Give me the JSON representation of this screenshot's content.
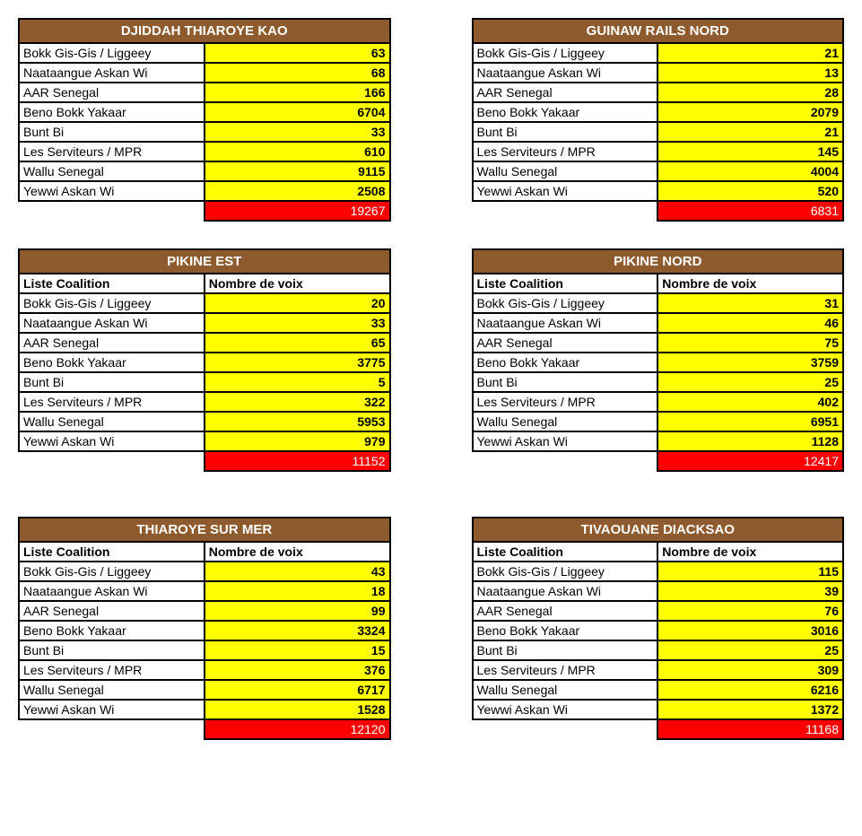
{
  "colors": {
    "header_bg": "#8e5b2e",
    "header_text": "#ffffff",
    "cell_highlight": "#ffff00",
    "total_bg": "#ff0000",
    "total_text": "#ffffff",
    "border": "#000000",
    "page_bg": "#ffffff"
  },
  "subheaders": {
    "coalition": "Liste Coalition",
    "votes": "Nombre de voix"
  },
  "tables": [
    {
      "title": "DJIDDAH THIAROYE KAO",
      "show_subheader": false,
      "rows": [
        {
          "name": "Bokk Gis-Gis / Liggeey",
          "value": "63"
        },
        {
          "name": "Naataangue Askan Wi",
          "value": "68"
        },
        {
          "name": "AAR Senegal",
          "value": "166"
        },
        {
          "name": "Beno Bokk Yakaar",
          "value": "6704"
        },
        {
          "name": "Bunt Bi",
          "value": "33"
        },
        {
          "name": "Les Serviteurs / MPR",
          "value": "610"
        },
        {
          "name": "Wallu Senegal",
          "value": "9115"
        },
        {
          "name": "Yewwi Askan Wi",
          "value": "2508"
        }
      ],
      "total": "19267"
    },
    {
      "title": "GUINAW RAILS NORD",
      "show_subheader": false,
      "rows": [
        {
          "name": "Bokk Gis-Gis / Liggeey",
          "value": "21"
        },
        {
          "name": "Naataangue Askan Wi",
          "value": "13"
        },
        {
          "name": "AAR Senegal",
          "value": "28"
        },
        {
          "name": "Beno Bokk Yakaar",
          "value": "2079"
        },
        {
          "name": "Bunt Bi",
          "value": "21"
        },
        {
          "name": "Les Serviteurs / MPR",
          "value": "145"
        },
        {
          "name": "Wallu Senegal",
          "value": "4004"
        },
        {
          "name": "Yewwi Askan Wi",
          "value": "520"
        }
      ],
      "total": "6831"
    },
    {
      "title": "PIKINE EST",
      "show_subheader": true,
      "rows": [
        {
          "name": "Bokk Gis-Gis / Liggeey",
          "value": "20"
        },
        {
          "name": "Naataangue Askan Wi",
          "value": "33"
        },
        {
          "name": "AAR Senegal",
          "value": "65"
        },
        {
          "name": "Beno Bokk Yakaar",
          "value": "3775"
        },
        {
          "name": "Bunt Bi",
          "value": "5"
        },
        {
          "name": "Les Serviteurs / MPR",
          "value": "322"
        },
        {
          "name": "Wallu Senegal",
          "value": "5953"
        },
        {
          "name": "Yewwi Askan Wi",
          "value": "979"
        }
      ],
      "total": "11152"
    },
    {
      "title": "PIKINE NORD",
      "show_subheader": true,
      "rows": [
        {
          "name": "Bokk Gis-Gis / Liggeey",
          "value": "31"
        },
        {
          "name": "Naataangue Askan Wi",
          "value": "46"
        },
        {
          "name": "AAR Senegal",
          "value": "75"
        },
        {
          "name": "Beno Bokk Yakaar",
          "value": "3759"
        },
        {
          "name": "Bunt Bi",
          "value": "25"
        },
        {
          "name": "Les Serviteurs / MPR",
          "value": "402"
        },
        {
          "name": "Wallu Senegal",
          "value": "6951"
        },
        {
          "name": "Yewwi Askan Wi",
          "value": "1128"
        }
      ],
      "total": "12417"
    },
    {
      "title": "THIAROYE SUR MER",
      "show_subheader": true,
      "rows": [
        {
          "name": "Bokk Gis-Gis / Liggeey",
          "value": "43"
        },
        {
          "name": "Naataangue Askan Wi",
          "value": "18"
        },
        {
          "name": "AAR Senegal",
          "value": "99"
        },
        {
          "name": "Beno Bokk Yakaar",
          "value": "3324"
        },
        {
          "name": "Bunt Bi",
          "value": "15"
        },
        {
          "name": "Les Serviteurs / MPR",
          "value": "376"
        },
        {
          "name": "Wallu Senegal",
          "value": "6717"
        },
        {
          "name": "Yewwi Askan Wi",
          "value": "1528"
        }
      ],
      "total": "12120"
    },
    {
      "title": "TIVAOUANE DIACKSAO",
      "show_subheader": true,
      "rows": [
        {
          "name": "Bokk Gis-Gis / Liggeey",
          "value": "115"
        },
        {
          "name": "Naataangue Askan Wi",
          "value": "39"
        },
        {
          "name": "AAR Senegal",
          "value": "76"
        },
        {
          "name": "Beno Bokk Yakaar",
          "value": "3016"
        },
        {
          "name": "Bunt Bi",
          "value": "25"
        },
        {
          "name": "Les Serviteurs / MPR",
          "value": "309"
        },
        {
          "name": "Wallu Senegal",
          "value": "6216"
        },
        {
          "name": "Yewwi Askan Wi",
          "value": "1372"
        }
      ],
      "total": "11168"
    }
  ]
}
